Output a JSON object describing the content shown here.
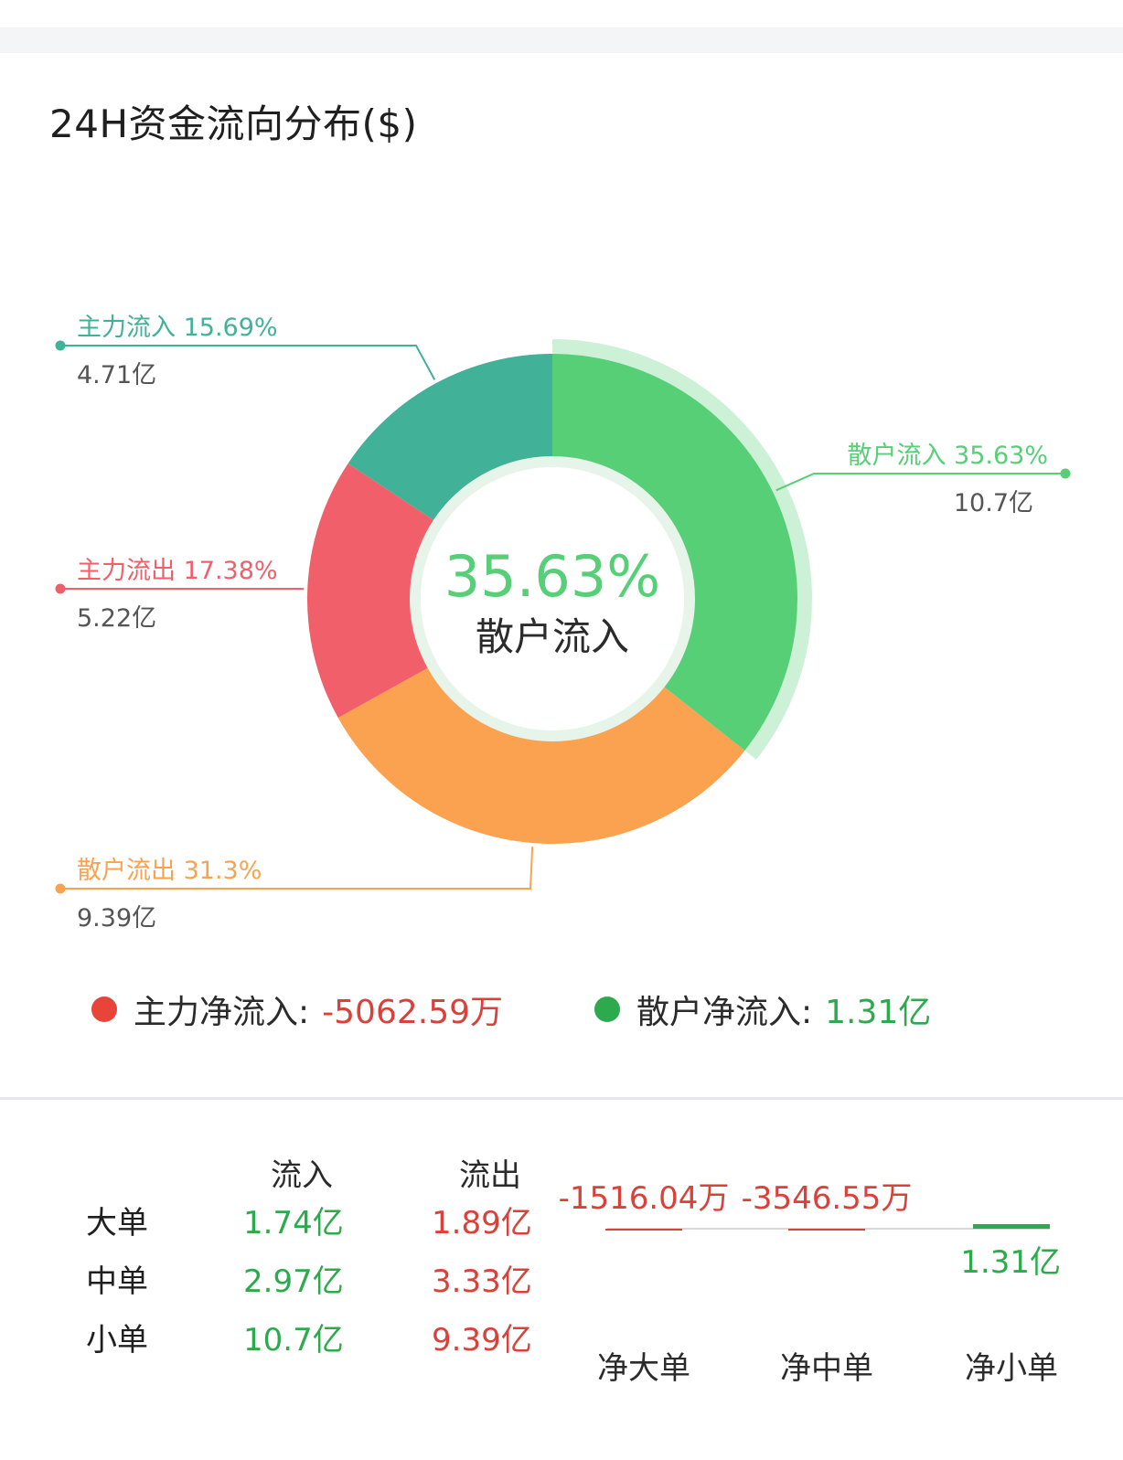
{
  "title": "24H资金流向分布($)",
  "chart_data": {
    "type": "pie",
    "donut": true,
    "center": {
      "value": "35.63%",
      "label": "散户流入"
    },
    "slices": [
      {
        "name": "散户流入",
        "percent": 35.63,
        "percent_label": "35.63%",
        "amount": "10.7亿",
        "color": "#56cf77"
      },
      {
        "name": "散户流出",
        "percent": 31.3,
        "percent_label": "31.3%",
        "amount": "9.39亿",
        "color": "#fba251"
      },
      {
        "name": "主力流出",
        "percent": 17.38,
        "percent_label": "17.38%",
        "amount": "5.22亿",
        "color": "#f1606a"
      },
      {
        "name": "主力流入",
        "percent": 15.69,
        "percent_label": "15.69%",
        "amount": "4.71亿",
        "color": "#41b198"
      }
    ],
    "highlighted": "散户流入"
  },
  "net": [
    {
      "label": "主力净流入:",
      "value": "-5062.59万",
      "dot_color": "#e8443a",
      "value_color": "#d9413a"
    },
    {
      "label": "散户净流入:",
      "value": "1.31亿",
      "dot_color": "#2eaa4e",
      "value_color": "#2eaa4e"
    }
  ],
  "table": {
    "headers": {
      "inflow": "流入",
      "outflow": "流出"
    },
    "rows": [
      {
        "label": "大单",
        "inflow": "1.74亿",
        "outflow": "1.89亿"
      },
      {
        "label": "中单",
        "inflow": "2.97亿",
        "outflow": "3.33亿"
      },
      {
        "label": "小单",
        "inflow": "10.7亿",
        "outflow": "9.39亿"
      }
    ]
  },
  "net_chart": {
    "type": "bar",
    "categories": [
      "净大单",
      "净中单",
      "净小单"
    ],
    "values": [
      -0.1516,
      -0.3547,
      1.31
    ],
    "unit": "亿",
    "labels": [
      "-1516.04万",
      "-3546.55万",
      "1.31亿"
    ],
    "colors": {
      "positive": "#2eaa4e",
      "negative": "#d9413a"
    }
  }
}
